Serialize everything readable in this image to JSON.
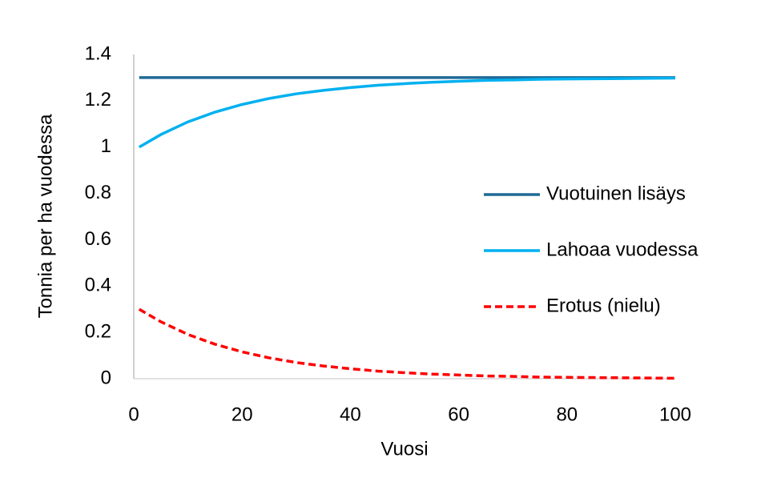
{
  "chart_data": {
    "type": "line",
    "x_label": "Vuosi",
    "y_label": "Tonnia per ha vuodessa",
    "x": [
      1,
      5,
      10,
      15,
      20,
      25,
      30,
      35,
      40,
      45,
      50,
      55,
      60,
      65,
      70,
      75,
      80,
      85,
      90,
      95,
      100
    ],
    "series": [
      {
        "name": "Vuotuinen lisäys",
        "color": "#1f6a96",
        "dash": false,
        "values": [
          1.3,
          1.3,
          1.3,
          1.3,
          1.3,
          1.3,
          1.3,
          1.3,
          1.3,
          1.3,
          1.3,
          1.3,
          1.3,
          1.3,
          1.3,
          1.3,
          1.3,
          1.3,
          1.3,
          1.3,
          1.3
        ]
      },
      {
        "name": "Lahoaa vuodessa",
        "color": "#00b0f0",
        "dash": false,
        "values": [
          1.0,
          1.054,
          1.109,
          1.151,
          1.184,
          1.21,
          1.23,
          1.245,
          1.257,
          1.267,
          1.274,
          1.28,
          1.284,
          1.288,
          1.29,
          1.293,
          1.294,
          1.295,
          1.296,
          1.297,
          1.298
        ]
      },
      {
        "name": "Erotus (nielu)",
        "color": "#ff0000",
        "dash": true,
        "values": [
          0.3,
          0.246,
          0.191,
          0.149,
          0.116,
          0.09,
          0.07,
          0.055,
          0.043,
          0.033,
          0.026,
          0.02,
          0.016,
          0.012,
          0.01,
          0.007,
          0.006,
          0.005,
          0.004,
          0.003,
          0.002
        ]
      }
    ],
    "xlim": [
      0,
      100
    ],
    "xticks": [
      0,
      20,
      40,
      60,
      80,
      100
    ],
    "ylim": [
      0,
      1.4
    ],
    "yticks": [
      0,
      0.2,
      0.4,
      0.6,
      0.8,
      1,
      1.2,
      1.4
    ],
    "grid": false,
    "legend": "right"
  }
}
